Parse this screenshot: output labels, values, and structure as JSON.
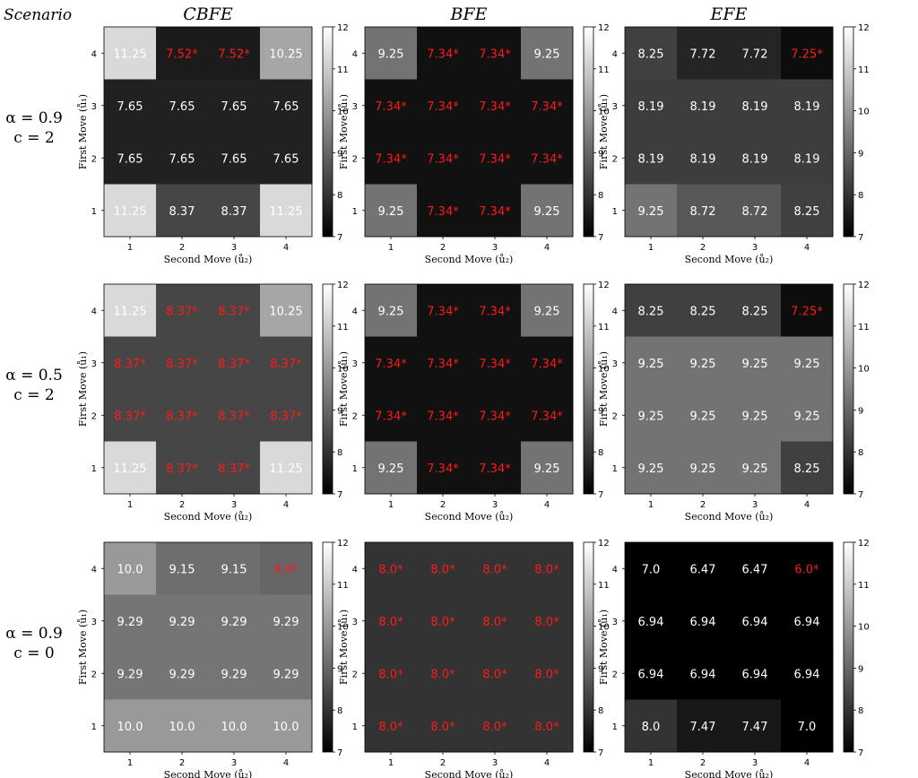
{
  "scenario_label": "Scenario",
  "columns": [
    "CBFE",
    "BFE",
    "EFE"
  ],
  "rows": [
    {
      "alpha": "α = 0.9",
      "c": "c = 2"
    },
    {
      "alpha": "α = 0.5",
      "c": "c = 2"
    },
    {
      "alpha": "α = 0.9",
      "c = 0": null,
      "c": "c = 0"
    }
  ],
  "axes": {
    "xlabel": "Second Move (ů₂)",
    "ylabel": "First Move (ů₁)",
    "ticks": [
      "1",
      "2",
      "3",
      "4"
    ]
  },
  "colorbar": {
    "min": 7,
    "max": 12,
    "ticks": [
      "7",
      "8",
      "9",
      "10",
      "11",
      "12"
    ],
    "colormap": "gray",
    "low_color": "#000000",
    "high_color": "#ffffff"
  },
  "colors": {
    "optimal_text": "#ff1a1a",
    "normal_text": "#ffffff"
  },
  "chart_data": [
    {
      "type": "heatmap",
      "title": "CBFE",
      "scenario": "α = 0.9, c = 2",
      "rows_top_to_bottom": [
        "4",
        "3",
        "2",
        "1"
      ],
      "cols": [
        "1",
        "2",
        "3",
        "4"
      ],
      "values": [
        [
          11.25,
          7.52,
          7.52,
          10.25
        ],
        [
          7.65,
          7.65,
          7.65,
          7.65
        ],
        [
          7.65,
          7.65,
          7.65,
          7.65
        ],
        [
          11.25,
          8.37,
          8.37,
          11.25
        ]
      ],
      "labels": [
        [
          "11.25",
          "7.52*",
          "7.52*",
          "10.25"
        ],
        [
          "7.65",
          "7.65",
          "7.65",
          "7.65"
        ],
        [
          "7.65",
          "7.65",
          "7.65",
          "7.65"
        ],
        [
          "11.25",
          "8.37",
          "8.37",
          "11.25"
        ]
      ]
    },
    {
      "type": "heatmap",
      "title": "BFE",
      "scenario": "α = 0.9, c = 2",
      "rows_top_to_bottom": [
        "4",
        "3",
        "2",
        "1"
      ],
      "cols": [
        "1",
        "2",
        "3",
        "4"
      ],
      "values": [
        [
          9.25,
          7.34,
          7.34,
          9.25
        ],
        [
          7.34,
          7.34,
          7.34,
          7.34
        ],
        [
          7.34,
          7.34,
          7.34,
          7.34
        ],
        [
          9.25,
          7.34,
          7.34,
          9.25
        ]
      ],
      "labels": [
        [
          "9.25",
          "7.34*",
          "7.34*",
          "9.25"
        ],
        [
          "7.34*",
          "7.34*",
          "7.34*",
          "7.34*"
        ],
        [
          "7.34*",
          "7.34*",
          "7.34*",
          "7.34*"
        ],
        [
          "9.25",
          "7.34*",
          "7.34*",
          "9.25"
        ]
      ]
    },
    {
      "type": "heatmap",
      "title": "EFE",
      "scenario": "α = 0.9, c = 2",
      "rows_top_to_bottom": [
        "4",
        "3",
        "2",
        "1"
      ],
      "cols": [
        "1",
        "2",
        "3",
        "4"
      ],
      "values": [
        [
          8.25,
          7.72,
          7.72,
          7.25
        ],
        [
          8.19,
          8.19,
          8.19,
          8.19
        ],
        [
          8.19,
          8.19,
          8.19,
          8.19
        ],
        [
          9.25,
          8.72,
          8.72,
          8.25
        ]
      ],
      "labels": [
        [
          "8.25",
          "7.72",
          "7.72",
          "7.25*"
        ],
        [
          "8.19",
          "8.19",
          "8.19",
          "8.19"
        ],
        [
          "8.19",
          "8.19",
          "8.19",
          "8.19"
        ],
        [
          "9.25",
          "8.72",
          "8.72",
          "8.25"
        ]
      ]
    },
    {
      "type": "heatmap",
      "title": "CBFE",
      "scenario": "α = 0.5, c = 2",
      "rows_top_to_bottom": [
        "4",
        "3",
        "2",
        "1"
      ],
      "cols": [
        "1",
        "2",
        "3",
        "4"
      ],
      "values": [
        [
          11.25,
          8.37,
          8.37,
          10.25
        ],
        [
          8.37,
          8.37,
          8.37,
          8.37
        ],
        [
          8.37,
          8.37,
          8.37,
          8.37
        ],
        [
          11.25,
          8.37,
          8.37,
          11.25
        ]
      ],
      "labels": [
        [
          "11.25",
          "8.37*",
          "8.37*",
          "10.25"
        ],
        [
          "8.37*",
          "8.37*",
          "8.37*",
          "8.37*"
        ],
        [
          "8.37*",
          "8.37*",
          "8.37*",
          "8.37*"
        ],
        [
          "11.25",
          "8.37*",
          "8.37*",
          "11.25"
        ]
      ]
    },
    {
      "type": "heatmap",
      "title": "BFE",
      "scenario": "α = 0.5, c = 2",
      "rows_top_to_bottom": [
        "4",
        "3",
        "2",
        "1"
      ],
      "cols": [
        "1",
        "2",
        "3",
        "4"
      ],
      "values": [
        [
          9.25,
          7.34,
          7.34,
          9.25
        ],
        [
          7.34,
          7.34,
          7.34,
          7.34
        ],
        [
          7.34,
          7.34,
          7.34,
          7.34
        ],
        [
          9.25,
          7.34,
          7.34,
          9.25
        ]
      ],
      "labels": [
        [
          "9.25",
          "7.34*",
          "7.34*",
          "9.25"
        ],
        [
          "7.34*",
          "7.34*",
          "7.34*",
          "7.34*"
        ],
        [
          "7.34*",
          "7.34*",
          "7.34*",
          "7.34*"
        ],
        [
          "9.25",
          "7.34*",
          "7.34*",
          "9.25"
        ]
      ]
    },
    {
      "type": "heatmap",
      "title": "EFE",
      "scenario": "α = 0.5, c = 2",
      "rows_top_to_bottom": [
        "4",
        "3",
        "2",
        "1"
      ],
      "cols": [
        "1",
        "2",
        "3",
        "4"
      ],
      "values": [
        [
          8.25,
          8.25,
          8.25,
          7.25
        ],
        [
          9.25,
          9.25,
          9.25,
          9.25
        ],
        [
          9.25,
          9.25,
          9.25,
          9.25
        ],
        [
          9.25,
          9.25,
          9.25,
          8.25
        ]
      ],
      "labels": [
        [
          "8.25",
          "8.25",
          "8.25",
          "7.25*"
        ],
        [
          "9.25",
          "9.25",
          "9.25",
          "9.25"
        ],
        [
          "9.25",
          "9.25",
          "9.25",
          "9.25"
        ],
        [
          "9.25",
          "9.25",
          "9.25",
          "8.25"
        ]
      ]
    },
    {
      "type": "heatmap",
      "title": "CBFE",
      "scenario": "α = 0.9, c = 0",
      "rows_top_to_bottom": [
        "4",
        "3",
        "2",
        "1"
      ],
      "cols": [
        "1",
        "2",
        "3",
        "4"
      ],
      "values": [
        [
          10.0,
          9.15,
          9.15,
          9.0
        ],
        [
          9.29,
          9.29,
          9.29,
          9.29
        ],
        [
          9.29,
          9.29,
          9.29,
          9.29
        ],
        [
          10.0,
          10.0,
          10.0,
          10.0
        ]
      ],
      "labels": [
        [
          "10.0",
          "9.15",
          "9.15",
          "9.0*"
        ],
        [
          "9.29",
          "9.29",
          "9.29",
          "9.29"
        ],
        [
          "9.29",
          "9.29",
          "9.29",
          "9.29"
        ],
        [
          "10.0",
          "10.0",
          "10.0",
          "10.0"
        ]
      ]
    },
    {
      "type": "heatmap",
      "title": "BFE",
      "scenario": "α = 0.9, c = 0",
      "rows_top_to_bottom": [
        "4",
        "3",
        "2",
        "1"
      ],
      "cols": [
        "1",
        "2",
        "3",
        "4"
      ],
      "values": [
        [
          8.0,
          8.0,
          8.0,
          8.0
        ],
        [
          8.0,
          8.0,
          8.0,
          8.0
        ],
        [
          8.0,
          8.0,
          8.0,
          8.0
        ],
        [
          8.0,
          8.0,
          8.0,
          8.0
        ]
      ],
      "labels": [
        [
          "8.0*",
          "8.0*",
          "8.0*",
          "8.0*"
        ],
        [
          "8.0*",
          "8.0*",
          "8.0*",
          "8.0*"
        ],
        [
          "8.0*",
          "8.0*",
          "8.0*",
          "8.0*"
        ],
        [
          "8.0*",
          "8.0*",
          "8.0*",
          "8.0*"
        ]
      ]
    },
    {
      "type": "heatmap",
      "title": "EFE",
      "scenario": "α = 0.9, c = 0",
      "rows_top_to_bottom": [
        "4",
        "3",
        "2",
        "1"
      ],
      "cols": [
        "1",
        "2",
        "3",
        "4"
      ],
      "values": [
        [
          7.0,
          6.47,
          6.47,
          6.0
        ],
        [
          6.94,
          6.94,
          6.94,
          6.94
        ],
        [
          6.94,
          6.94,
          6.94,
          6.94
        ],
        [
          8.0,
          7.47,
          7.47,
          7.0
        ]
      ],
      "labels": [
        [
          "7.0",
          "6.47",
          "6.47",
          "6.0*"
        ],
        [
          "6.94",
          "6.94",
          "6.94",
          "6.94"
        ],
        [
          "6.94",
          "6.94",
          "6.94",
          "6.94"
        ],
        [
          "8.0",
          "7.47",
          "7.47",
          "7.0"
        ]
      ]
    }
  ]
}
